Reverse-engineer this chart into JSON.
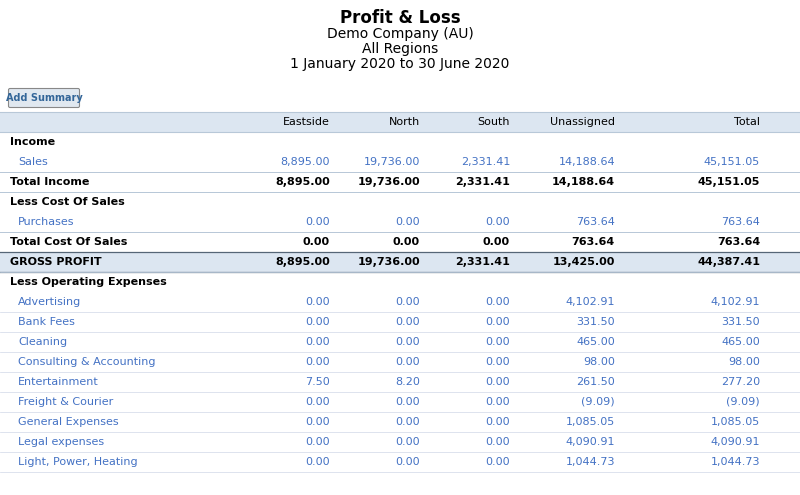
{
  "title_line1": "Profit & Loss",
  "title_line2": "Demo Company (AU)",
  "title_line3": "All Regions",
  "title_line4": "1 January 2020 to 30 June 2020",
  "button_text": "Add Summary",
  "columns": [
    "",
    "Eastside",
    "North",
    "South",
    "Unassigned",
    "Total"
  ],
  "header_bg": "#dce6f1",
  "link_color": "#4472c4",
  "bold_color": "#000000",
  "gross_profit_bg": "#dce6f1",
  "rows": [
    {
      "type": "section_header",
      "label": "Income",
      "values": [
        "",
        "",
        "",
        "",
        ""
      ]
    },
    {
      "type": "data_link",
      "label": "Sales",
      "values": [
        "8,895.00",
        "19,736.00",
        "2,331.41",
        "14,188.64",
        "45,151.05"
      ]
    },
    {
      "type": "total",
      "label": "Total Income",
      "values": [
        "8,895.00",
        "19,736.00",
        "2,331.41",
        "14,188.64",
        "45,151.05"
      ]
    },
    {
      "type": "section_header",
      "label": "Less Cost Of Sales",
      "values": [
        "",
        "",
        "",
        "",
        ""
      ]
    },
    {
      "type": "data_link",
      "label": "Purchases",
      "values": [
        "0.00",
        "0.00",
        "0.00",
        "763.64",
        "763.64"
      ]
    },
    {
      "type": "total",
      "label": "Total Cost Of Sales",
      "values": [
        "0.00",
        "0.00",
        "0.00",
        "763.64",
        "763.64"
      ]
    },
    {
      "type": "gross_profit",
      "label": "GROSS PROFIT",
      "values": [
        "8,895.00",
        "19,736.00",
        "2,331.41",
        "13,425.00",
        "44,387.41"
      ]
    },
    {
      "type": "section_header",
      "label": "Less Operating Expenses",
      "values": [
        "",
        "",
        "",
        "",
        ""
      ]
    },
    {
      "type": "data_link",
      "label": "Advertising",
      "values": [
        "0.00",
        "0.00",
        "0.00",
        "4,102.91",
        "4,102.91"
      ]
    },
    {
      "type": "data_link",
      "label": "Bank Fees",
      "values": [
        "0.00",
        "0.00",
        "0.00",
        "331.50",
        "331.50"
      ]
    },
    {
      "type": "data_link",
      "label": "Cleaning",
      "values": [
        "0.00",
        "0.00",
        "0.00",
        "465.00",
        "465.00"
      ]
    },
    {
      "type": "data_link",
      "label": "Consulting & Accounting",
      "values": [
        "0.00",
        "0.00",
        "0.00",
        "98.00",
        "98.00"
      ]
    },
    {
      "type": "data_link",
      "label": "Entertainment",
      "values": [
        "7.50",
        "8.20",
        "0.00",
        "261.50",
        "277.20"
      ]
    },
    {
      "type": "data_link",
      "label": "Freight & Courier",
      "values": [
        "0.00",
        "0.00",
        "0.00",
        "(9.09)",
        "(9.09)"
      ]
    },
    {
      "type": "data_link",
      "label": "General Expenses",
      "values": [
        "0.00",
        "0.00",
        "0.00",
        "1,085.05",
        "1,085.05"
      ]
    },
    {
      "type": "data_link",
      "label": "Legal expenses",
      "values": [
        "0.00",
        "0.00",
        "0.00",
        "4,090.91",
        "4,090.91"
      ]
    },
    {
      "type": "data_link",
      "label": "Light, Power, Heating",
      "values": [
        "0.00",
        "0.00",
        "0.00",
        "1,044.73",
        "1,044.73"
      ]
    }
  ]
}
